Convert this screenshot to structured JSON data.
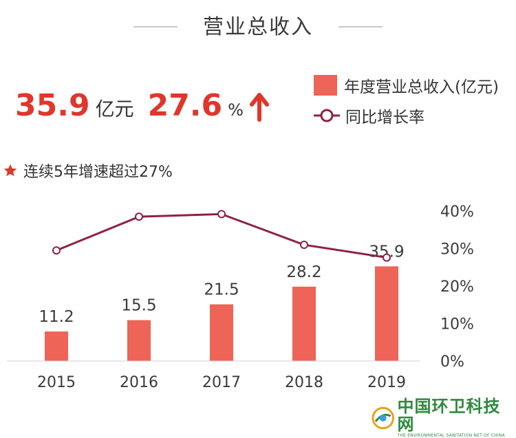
{
  "title": "营业总收入",
  "kpi": {
    "revenue_value": "35.9",
    "revenue_unit": "亿元",
    "growth_value": "27.6",
    "growth_unit": "%",
    "growth_direction": "up"
  },
  "legend": {
    "bar_label": "年度营业总收入(亿元)",
    "line_label": "同比增长率"
  },
  "note": "连续5年增速超过27%",
  "watermark": {
    "main": "中国环卫科技网",
    "sub": "THE ENVIRONMENTAL SANITATION NET OF CHINA"
  },
  "colors": {
    "bar": "#ee6457",
    "line": "#8e2146",
    "accent": "#e0362b",
    "axis_text": "#3a3a3a"
  },
  "chart_data": {
    "type": "bar",
    "categories": [
      "2015",
      "2016",
      "2017",
      "2018",
      "2019"
    ],
    "series": [
      {
        "name": "年度营业总收入(亿元)",
        "type": "bar",
        "axis": "left",
        "values": [
          11.2,
          15.5,
          21.5,
          28.2,
          35.9
        ]
      },
      {
        "name": "同比增长率",
        "type": "line",
        "axis": "right",
        "values": [
          29.5,
          38.5,
          39.2,
          31.0,
          27.6
        ]
      }
    ],
    "data_labels": [
      "11.2",
      "15.5",
      "21.5",
      "28.2",
      "35.9"
    ],
    "y_left_range": [
      0,
      60
    ],
    "y_right_range": [
      0,
      40
    ],
    "y_right_ticks": [
      "0%",
      "10%",
      "20%",
      "30%",
      "40%"
    ],
    "grid": false
  }
}
